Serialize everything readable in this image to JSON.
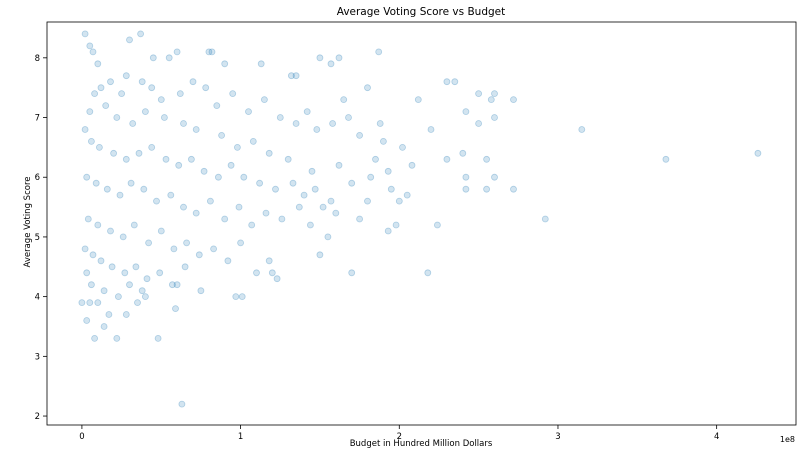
{
  "chart_data": {
    "type": "scatter",
    "title": "Average Voting Score vs Budget",
    "xlabel": "Budget in Hundred Million Dollars",
    "ylabel": "Average Voting Score",
    "x_offset_label": "1e8",
    "xlim": [
      -0.22,
      4.5
    ],
    "ylim": [
      1.85,
      8.6
    ],
    "x_ticks": [
      0,
      1,
      2,
      3,
      4
    ],
    "x_tick_labels": [
      "0",
      "1",
      "2",
      "3",
      "4"
    ],
    "y_ticks": [
      2,
      3,
      4,
      5,
      6,
      7,
      8
    ],
    "y_tick_labels": [
      "2",
      "3",
      "4",
      "5",
      "6",
      "7",
      "8"
    ],
    "grid": false,
    "marker_color": "#1f77b4",
    "marker_alpha": 0.2,
    "points": [
      [
        0.02,
        8.4
      ],
      [
        0.3,
        8.3
      ],
      [
        0.37,
        8.4
      ],
      [
        0.07,
        8.1
      ],
      [
        0.05,
        8.2
      ],
      [
        0.6,
        8.1
      ],
      [
        0.8,
        8.1
      ],
      [
        0.82,
        8.1
      ],
      [
        0.45,
        8.0
      ],
      [
        0.55,
        8.0
      ],
      [
        0.1,
        7.9
      ],
      [
        0.9,
        7.9
      ],
      [
        1.13,
        7.9
      ],
      [
        1.5,
        8.0
      ],
      [
        1.62,
        8.0
      ],
      [
        1.87,
        8.1
      ],
      [
        1.57,
        7.9
      ],
      [
        1.32,
        7.7
      ],
      [
        1.35,
        7.7
      ],
      [
        1.8,
        7.5
      ],
      [
        1.65,
        7.3
      ],
      [
        2.12,
        7.3
      ],
      [
        2.3,
        7.6
      ],
      [
        2.35,
        7.6
      ],
      [
        2.5,
        7.4
      ],
      [
        2.6,
        7.4
      ],
      [
        2.58,
        7.3
      ],
      [
        2.72,
        7.3
      ],
      [
        2.42,
        7.1
      ],
      [
        2.6,
        7.0
      ],
      [
        1.88,
        6.9
      ],
      [
        2.5,
        6.9
      ],
      [
        2.2,
        6.8
      ],
      [
        3.15,
        6.8
      ],
      [
        2.4,
        6.4
      ],
      [
        2.55,
        6.3
      ],
      [
        2.3,
        6.3
      ],
      [
        2.42,
        6.0
      ],
      [
        2.6,
        6.0
      ],
      [
        3.68,
        6.3
      ],
      [
        4.26,
        6.4
      ],
      [
        2.42,
        5.8
      ],
      [
        2.55,
        5.8
      ],
      [
        2.72,
        5.8
      ],
      [
        1.8,
        5.6
      ],
      [
        2.0,
        5.6
      ],
      [
        2.05,
        5.7
      ],
      [
        1.95,
        5.8
      ],
      [
        1.6,
        5.4
      ],
      [
        1.52,
        5.5
      ],
      [
        1.75,
        5.3
      ],
      [
        1.55,
        5.0
      ],
      [
        1.93,
        5.1
      ],
      [
        2.24,
        5.2
      ],
      [
        2.92,
        5.3
      ],
      [
        1.98,
        5.2
      ],
      [
        1.5,
        4.7
      ],
      [
        1.7,
        4.4
      ],
      [
        2.18,
        4.4
      ],
      [
        1.2,
        4.4
      ],
      [
        1.23,
        4.3
      ],
      [
        1.1,
        4.4
      ],
      [
        0.75,
        4.1
      ],
      [
        0.97,
        4.0
      ],
      [
        1.01,
        4.0
      ],
      [
        0.59,
        3.8
      ],
      [
        0.48,
        3.3
      ],
      [
        0.28,
        3.7
      ],
      [
        0.22,
        3.3
      ],
      [
        0.14,
        3.5
      ],
      [
        0.17,
        3.7
      ],
      [
        0.08,
        3.3
      ],
      [
        0.03,
        3.6
      ],
      [
        0.0,
        3.9
      ],
      [
        0.05,
        3.9
      ],
      [
        0.1,
        3.9
      ],
      [
        0.35,
        3.9
      ],
      [
        0.4,
        4.0
      ],
      [
        0.6,
        4.2
      ],
      [
        0.63,
        2.2
      ],
      [
        0.28,
        7.7
      ],
      [
        0.18,
        7.6
      ],
      [
        0.12,
        7.5
      ],
      [
        0.25,
        7.4
      ],
      [
        0.08,
        7.4
      ],
      [
        0.38,
        7.6
      ],
      [
        0.44,
        7.5
      ],
      [
        0.5,
        7.3
      ],
      [
        0.62,
        7.4
      ],
      [
        0.7,
        7.6
      ],
      [
        0.78,
        7.5
      ],
      [
        0.85,
        7.2
      ],
      [
        0.95,
        7.4
      ],
      [
        1.05,
        7.1
      ],
      [
        1.15,
        7.3
      ],
      [
        1.25,
        7.0
      ],
      [
        1.35,
        6.9
      ],
      [
        1.42,
        7.1
      ],
      [
        1.48,
        6.8
      ],
      [
        1.58,
        6.9
      ],
      [
        1.68,
        7.0
      ],
      [
        1.75,
        6.7
      ],
      [
        1.9,
        6.6
      ],
      [
        2.02,
        6.5
      ],
      [
        2.08,
        6.2
      ],
      [
        1.85,
        6.3
      ],
      [
        1.62,
        6.2
      ],
      [
        1.45,
        6.1
      ],
      [
        1.3,
        6.3
      ],
      [
        1.18,
        6.4
      ],
      [
        1.08,
        6.6
      ],
      [
        0.98,
        6.5
      ],
      [
        0.88,
        6.7
      ],
      [
        0.72,
        6.8
      ],
      [
        0.64,
        6.9
      ],
      [
        0.52,
        7.0
      ],
      [
        0.4,
        7.1
      ],
      [
        0.32,
        6.9
      ],
      [
        0.22,
        7.0
      ],
      [
        0.15,
        7.2
      ],
      [
        0.05,
        7.1
      ],
      [
        0.02,
        6.8
      ],
      [
        0.06,
        6.6
      ],
      [
        0.11,
        6.5
      ],
      [
        0.2,
        6.4
      ],
      [
        0.28,
        6.3
      ],
      [
        0.36,
        6.4
      ],
      [
        0.44,
        6.5
      ],
      [
        0.53,
        6.3
      ],
      [
        0.61,
        6.2
      ],
      [
        0.69,
        6.3
      ],
      [
        0.77,
        6.1
      ],
      [
        0.86,
        6.0
      ],
      [
        0.94,
        6.2
      ],
      [
        1.02,
        6.0
      ],
      [
        1.12,
        5.9
      ],
      [
        1.22,
        5.8
      ],
      [
        1.33,
        5.9
      ],
      [
        1.4,
        5.7
      ],
      [
        1.47,
        5.8
      ],
      [
        1.57,
        5.6
      ],
      [
        1.7,
        5.9
      ],
      [
        1.82,
        6.0
      ],
      [
        1.93,
        6.1
      ],
      [
        0.03,
        6.0
      ],
      [
        0.09,
        5.9
      ],
      [
        0.16,
        5.8
      ],
      [
        0.24,
        5.7
      ],
      [
        0.31,
        5.9
      ],
      [
        0.39,
        5.8
      ],
      [
        0.47,
        5.6
      ],
      [
        0.56,
        5.7
      ],
      [
        0.64,
        5.5
      ],
      [
        0.72,
        5.4
      ],
      [
        0.81,
        5.6
      ],
      [
        0.9,
        5.3
      ],
      [
        0.99,
        5.5
      ],
      [
        1.07,
        5.2
      ],
      [
        1.16,
        5.4
      ],
      [
        1.26,
        5.3
      ],
      [
        1.37,
        5.5
      ],
      [
        1.44,
        5.2
      ],
      [
        0.04,
        5.3
      ],
      [
        0.1,
        5.2
      ],
      [
        0.18,
        5.1
      ],
      [
        0.26,
        5.0
      ],
      [
        0.33,
        5.2
      ],
      [
        0.42,
        4.9
      ],
      [
        0.5,
        5.1
      ],
      [
        0.58,
        4.8
      ],
      [
        0.66,
        4.9
      ],
      [
        0.74,
        4.7
      ],
      [
        0.83,
        4.8
      ],
      [
        0.92,
        4.6
      ],
      [
        1.0,
        4.9
      ],
      [
        1.18,
        4.6
      ],
      [
        0.02,
        4.8
      ],
      [
        0.07,
        4.7
      ],
      [
        0.12,
        4.6
      ],
      [
        0.19,
        4.5
      ],
      [
        0.27,
        4.4
      ],
      [
        0.34,
        4.5
      ],
      [
        0.41,
        4.3
      ],
      [
        0.49,
        4.4
      ],
      [
        0.57,
        4.2
      ],
      [
        0.65,
        4.5
      ],
      [
        0.03,
        4.4
      ],
      [
        0.06,
        4.2
      ],
      [
        0.14,
        4.1
      ],
      [
        0.23,
        4.0
      ],
      [
        0.3,
        4.2
      ],
      [
        0.38,
        4.1
      ]
    ]
  }
}
